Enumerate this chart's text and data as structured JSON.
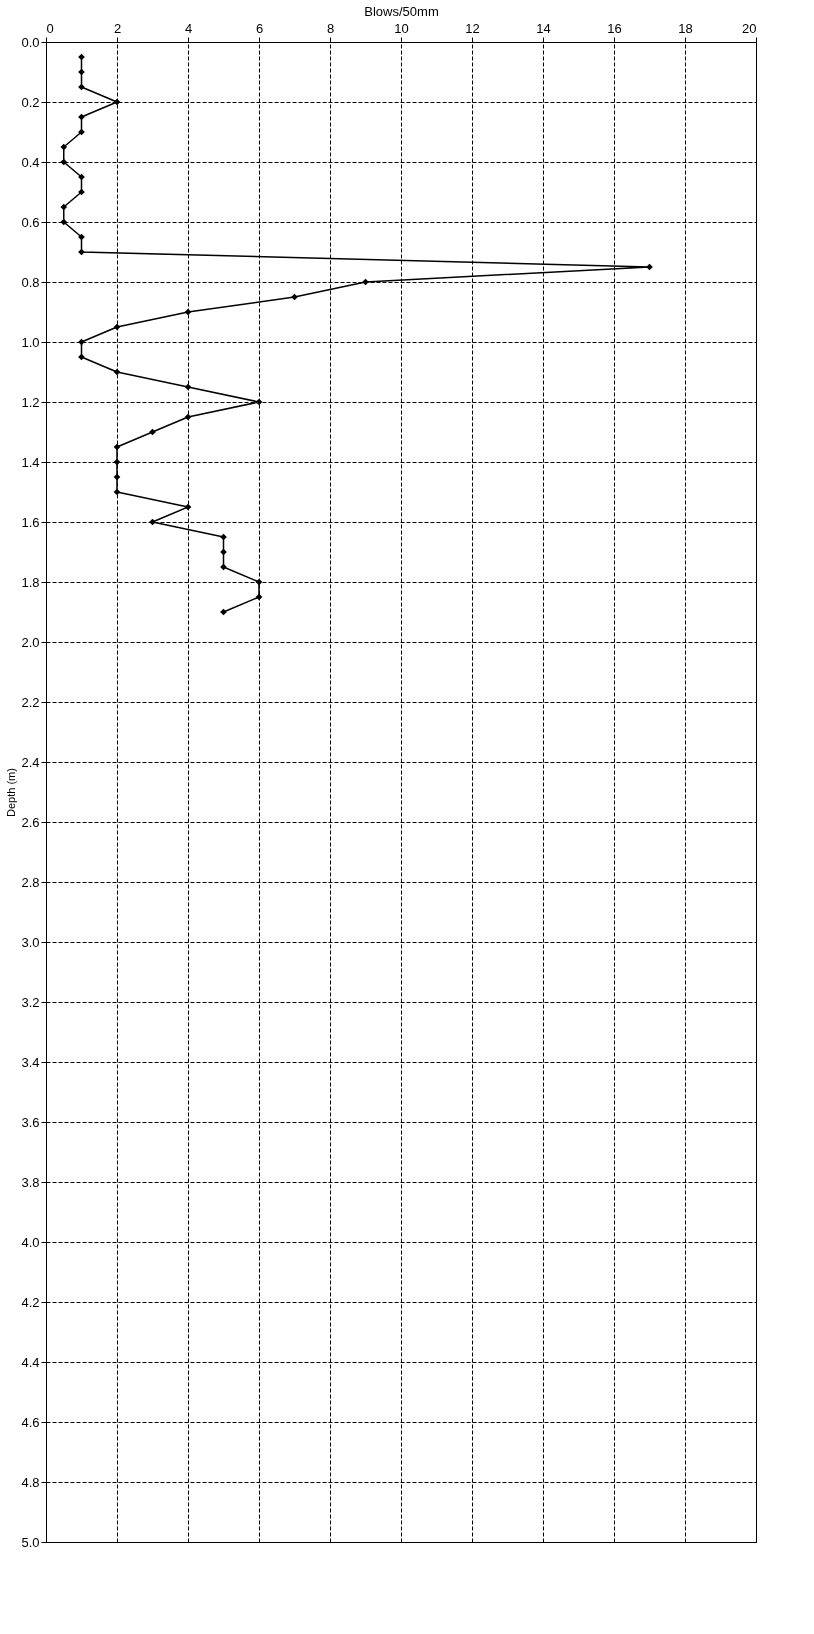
{
  "chart_data": {
    "type": "line",
    "xlabel": "Blows/50mm",
    "ylabel": "Depth (m)",
    "xlim": [
      0,
      20
    ],
    "xticks": [
      0,
      2,
      4,
      6,
      8,
      10,
      12,
      14,
      16,
      18,
      20
    ],
    "ylim": [
      5,
      0
    ],
    "yticks": [
      {
        "value": 0,
        "label": "0.0"
      },
      {
        "value": 0.2,
        "label": "0.2"
      },
      {
        "value": 0.4,
        "label": "0.4"
      },
      {
        "value": 0.6,
        "label": "0.6"
      },
      {
        "value": 0.8,
        "label": "0.8"
      },
      {
        "value": 1,
        "label": "1.0"
      },
      {
        "value": 1.2,
        "label": "1.2"
      },
      {
        "value": 1.4,
        "label": "1.4"
      },
      {
        "value": 1.6,
        "label": "1.6"
      },
      {
        "value": 1.8,
        "label": "1.8"
      },
      {
        "value": 2,
        "label": "2.0"
      },
      {
        "value": 2.2,
        "label": "2.2"
      },
      {
        "value": 2.4,
        "label": "2.4"
      },
      {
        "value": 2.6,
        "label": "2.6"
      },
      {
        "value": 2.8,
        "label": "2.8"
      },
      {
        "value": 3,
        "label": "3.0"
      },
      {
        "value": 3.2,
        "label": "3.2"
      },
      {
        "value": 3.4,
        "label": "3.4"
      },
      {
        "value": 3.6,
        "label": "3.6"
      },
      {
        "value": 3.8,
        "label": "3.8"
      },
      {
        "value": 4,
        "label": "4.0"
      },
      {
        "value": 4.2,
        "label": "4.2"
      },
      {
        "value": 4.4,
        "label": "4.4"
      },
      {
        "value": 4.6,
        "label": "4.6"
      },
      {
        "value": 4.8,
        "label": "4.8"
      },
      {
        "value": 5,
        "label": "5.0"
      }
    ],
    "grid": true,
    "marker": "diamond",
    "line_style": "solid",
    "series": [
      {
        "color": "#000000",
        "x": [
          1,
          1,
          1,
          2,
          1,
          1,
          0.5,
          0.5,
          1,
          1,
          0.5,
          0.5,
          1,
          1,
          17,
          9,
          7,
          4,
          2,
          1,
          1,
          2,
          4,
          6,
          4,
          3,
          2,
          2,
          2,
          2,
          4,
          3,
          5,
          5,
          5,
          6,
          6,
          5
        ],
        "values": [
          0.05,
          0.1,
          0.15,
          0.2,
          0.25,
          0.3,
          0.35,
          0.4,
          0.45,
          0.5,
          0.55,
          0.6,
          0.65,
          0.7,
          0.75,
          0.8,
          0.85,
          0.9,
          0.95,
          1.0,
          1.05,
          1.1,
          1.15,
          1.2,
          1.25,
          1.3,
          1.35,
          1.4,
          1.45,
          1.5,
          1.55,
          1.6,
          1.65,
          1.7,
          1.75,
          1.8,
          1.85,
          1.9
        ]
      }
    ]
  }
}
